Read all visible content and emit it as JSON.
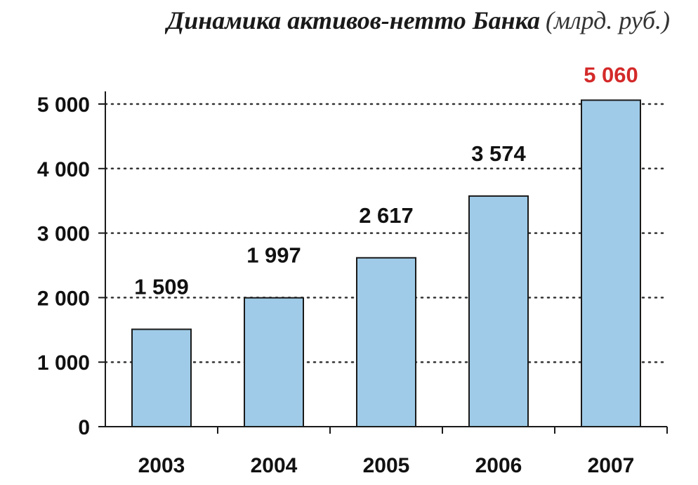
{
  "chart_data": {
    "type": "bar",
    "title": "Динамика активов-нетто Банка",
    "unit": "(млрд. руб.)",
    "categories": [
      "2003",
      "2004",
      "2005",
      "2006",
      "2007"
    ],
    "values": [
      1509,
      1997,
      2617,
      3574,
      5060
    ],
    "data_labels": [
      "1 509",
      "1 997",
      "2 617",
      "3 574",
      "5 060"
    ],
    "highlight_index": 4,
    "y_ticks": [
      0,
      1000,
      2000,
      3000,
      4000,
      5000
    ],
    "y_tick_labels": [
      "0",
      "1 000",
      "2 000",
      "3 000",
      "4 000",
      "5 000"
    ],
    "ylim": [
      0,
      5000
    ],
    "grid": true,
    "colors": {
      "bar_fill": "#9fcbe8",
      "bar_stroke": "#1a1a1a",
      "highlight_label": "#d42a2a",
      "grid": "#333333"
    }
  }
}
